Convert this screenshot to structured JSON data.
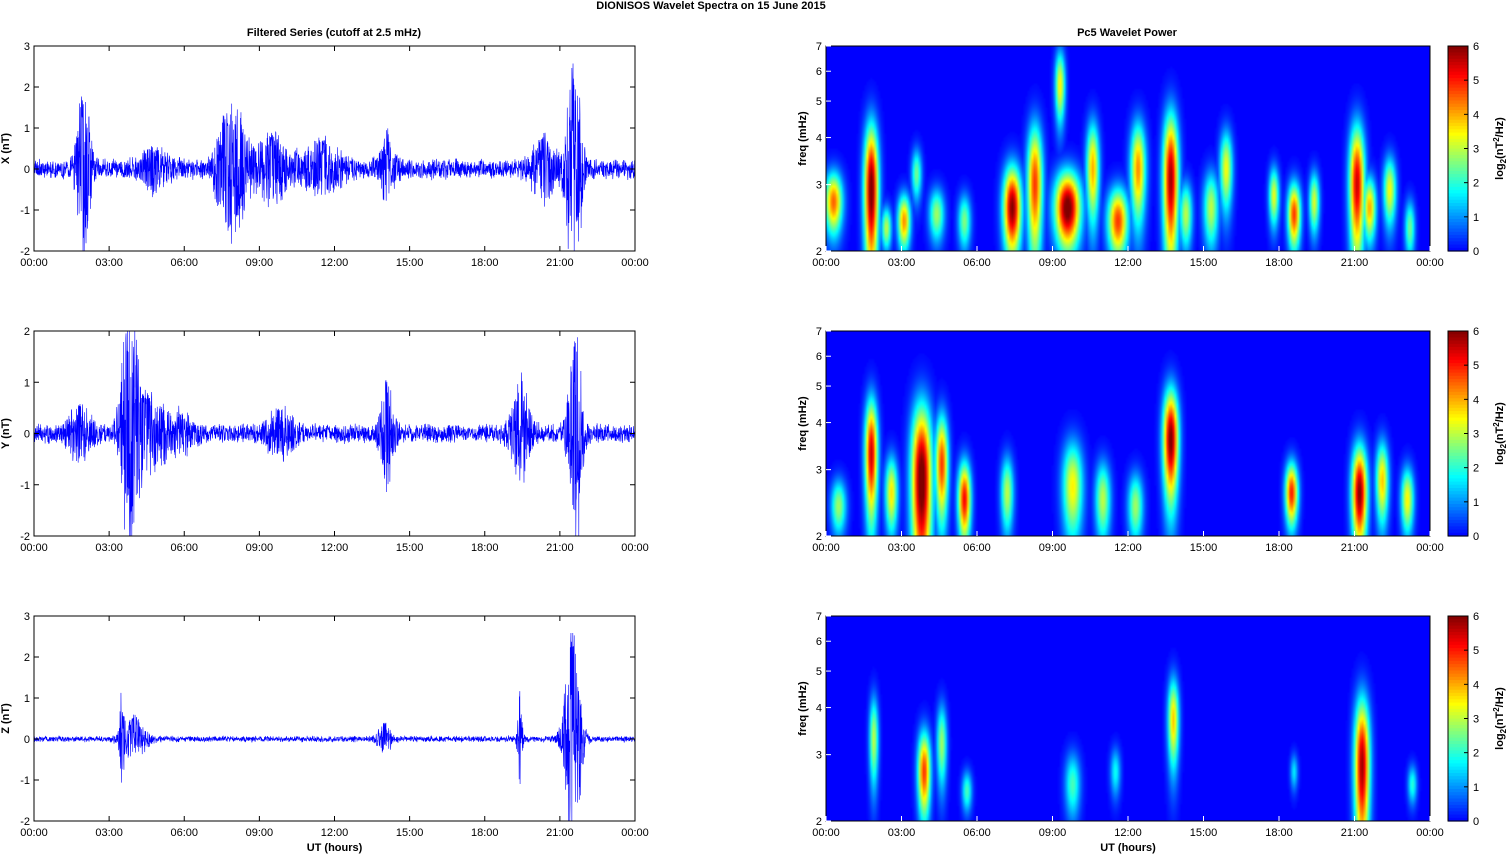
{
  "figure_title": "DIONISOS Wavelet Spectra on 15 June      2015",
  "left_column_title": "Filtered Series (cutoff at 2.5 mHz)",
  "right_column_title": "Pc5 Wavelet Power",
  "x_tick_labels": [
    "00:00",
    "03:00",
    "06:00",
    "09:00",
    "12:00",
    "15:00",
    "18:00",
    "21:00",
    "00:00"
  ],
  "x_axis_label": "UT (hours)",
  "colors": {
    "trace": "#0000ff",
    "axis": "#000000",
    "background_spectrum": "#00008f"
  },
  "chart_data": [
    {
      "type": "line",
      "component": "X",
      "ylabel": "X (nT)",
      "ylim": [
        -2,
        3
      ],
      "y_ticks": [
        "3",
        "2",
        "1",
        "0",
        "-1",
        "-2"
      ],
      "xlim_hours": [
        0,
        24
      ],
      "base_amplitude_nT": 0.2,
      "activity_bursts": [
        {
          "t": 1.9,
          "width": 0.25,
          "amp": 1.6
        },
        {
          "t": 2.1,
          "width": 0.2,
          "amp": -1.5
        },
        {
          "t": 4.8,
          "width": 0.6,
          "amp": 0.5
        },
        {
          "t": 7.7,
          "width": 0.5,
          "amp": 1.3
        },
        {
          "t": 8.1,
          "width": 0.4,
          "amp": -1.2
        },
        {
          "t": 9.5,
          "width": 0.8,
          "amp": 0.9
        },
        {
          "t": 11.5,
          "width": 0.8,
          "amp": 0.7
        },
        {
          "t": 14.1,
          "width": 0.3,
          "amp": 1.0
        },
        {
          "t": 20.3,
          "width": 0.5,
          "amp": 0.8
        },
        {
          "t": 21.5,
          "width": 0.3,
          "amp": 2.6
        },
        {
          "t": 21.7,
          "width": 0.2,
          "amp": -1.3
        }
      ]
    },
    {
      "type": "line",
      "component": "Y",
      "ylabel": "Y (nT)",
      "ylim": [
        -2,
        2
      ],
      "y_ticks": [
        "2",
        "1",
        "0",
        "-1",
        "-2"
      ],
      "xlim_hours": [
        0,
        24
      ],
      "base_amplitude_nT": 0.15,
      "activity_bursts": [
        {
          "t": 1.8,
          "width": 0.5,
          "amp": 0.6
        },
        {
          "t": 3.7,
          "width": 0.3,
          "amp": 1.85
        },
        {
          "t": 3.9,
          "width": 0.3,
          "amp": -1.6
        },
        {
          "t": 4.5,
          "width": 0.8,
          "amp": 0.8
        },
        {
          "t": 5.8,
          "width": 0.6,
          "amp": 0.4
        },
        {
          "t": 9.8,
          "width": 0.6,
          "amp": 0.5
        },
        {
          "t": 14.1,
          "width": 0.3,
          "amp": 1.1
        },
        {
          "t": 19.4,
          "width": 0.4,
          "amp": 1.2
        },
        {
          "t": 21.6,
          "width": 0.3,
          "amp": 1.8
        },
        {
          "t": 21.7,
          "width": 0.2,
          "amp": -0.9
        }
      ]
    },
    {
      "type": "line",
      "component": "Z",
      "ylabel": "Z (nT)",
      "ylim": [
        -2,
        3
      ],
      "y_ticks": [
        "3",
        "2",
        "1",
        "0",
        "-1",
        "-2"
      ],
      "xlim_hours": [
        0,
        24
      ],
      "base_amplitude_nT": 0.06,
      "activity_bursts": [
        {
          "t": 3.5,
          "width": 0.1,
          "amp": -1.3
        },
        {
          "t": 4.0,
          "width": 0.5,
          "amp": 0.6
        },
        {
          "t": 14.0,
          "width": 0.3,
          "amp": 0.4
        },
        {
          "t": 19.4,
          "width": 0.1,
          "amp": 1.2
        },
        {
          "t": 21.5,
          "width": 0.35,
          "amp": 2.6
        },
        {
          "t": 21.6,
          "width": 0.3,
          "amp": -0.6
        }
      ]
    },
    {
      "type": "heatmap",
      "component": "X",
      "ylabel": "freq (mHz)",
      "y_scale": "log",
      "ylim_mHz": [
        2,
        7
      ],
      "y_ticks": [
        "7",
        "6",
        "5",
        "4",
        "3",
        "2"
      ],
      "xlim_hours": [
        0,
        24
      ],
      "colorbar_label": "log2(nT^2/Hz)",
      "colorbar_ticks": [
        "6",
        "5",
        "4",
        "3",
        "2",
        "1",
        "0"
      ],
      "clim": [
        0,
        6
      ],
      "blobs": [
        {
          "t": 0.3,
          "f": 2.7,
          "wt": 0.35,
          "wf": 0.5,
          "p": 4.5
        },
        {
          "t": 1.8,
          "f": 2.9,
          "wt": 0.28,
          "wf": 1.3,
          "p": 6.2
        },
        {
          "t": 2.4,
          "f": 2.3,
          "wt": 0.2,
          "wf": 0.3,
          "p": 3.0
        },
        {
          "t": 3.1,
          "f": 2.4,
          "wt": 0.25,
          "wf": 0.4,
          "p": 4.2
        },
        {
          "t": 3.6,
          "f": 3.2,
          "wt": 0.2,
          "wf": 0.5,
          "p": 2.5
        },
        {
          "t": 4.4,
          "f": 2.5,
          "wt": 0.3,
          "wf": 0.4,
          "p": 2.8
        },
        {
          "t": 5.5,
          "f": 2.4,
          "wt": 0.25,
          "wf": 0.4,
          "p": 2.6
        },
        {
          "t": 7.4,
          "f": 2.6,
          "wt": 0.35,
          "wf": 0.7,
          "p": 6.0
        },
        {
          "t": 8.3,
          "f": 3.0,
          "wt": 0.3,
          "wf": 1.2,
          "p": 4.8
        },
        {
          "t": 9.6,
          "f": 2.6,
          "wt": 0.5,
          "wf": 0.6,
          "p": 6.3
        },
        {
          "t": 9.3,
          "f": 5.5,
          "wt": 0.2,
          "wf": 1.2,
          "p": 3.5
        },
        {
          "t": 10.6,
          "f": 3.3,
          "wt": 0.25,
          "wf": 1.0,
          "p": 4.0
        },
        {
          "t": 11.6,
          "f": 2.4,
          "wt": 0.4,
          "wf": 0.5,
          "p": 4.8
        },
        {
          "t": 12.4,
          "f": 3.3,
          "wt": 0.3,
          "wf": 1.0,
          "p": 4.2
        },
        {
          "t": 13.7,
          "f": 3.1,
          "wt": 0.3,
          "wf": 1.4,
          "p": 5.8
        },
        {
          "t": 14.3,
          "f": 2.5,
          "wt": 0.25,
          "wf": 0.5,
          "p": 3.0
        },
        {
          "t": 15.3,
          "f": 2.6,
          "wt": 0.3,
          "wf": 0.6,
          "p": 3.0
        },
        {
          "t": 15.9,
          "f": 3.3,
          "wt": 0.25,
          "wf": 0.8,
          "p": 3.4
        },
        {
          "t": 17.8,
          "f": 2.8,
          "wt": 0.2,
          "wf": 0.5,
          "p": 3.3
        },
        {
          "t": 18.6,
          "f": 2.5,
          "wt": 0.25,
          "wf": 0.5,
          "p": 4.8
        },
        {
          "t": 19.4,
          "f": 2.7,
          "wt": 0.2,
          "wf": 0.5,
          "p": 3.2
        },
        {
          "t": 21.1,
          "f": 3.0,
          "wt": 0.3,
          "wf": 1.2,
          "p": 5.5
        },
        {
          "t": 21.6,
          "f": 2.6,
          "wt": 0.25,
          "wf": 0.5,
          "p": 4.0
        },
        {
          "t": 22.4,
          "f": 2.9,
          "wt": 0.25,
          "wf": 0.6,
          "p": 3.4
        },
        {
          "t": 23.2,
          "f": 2.3,
          "wt": 0.2,
          "wf": 0.4,
          "p": 2.5
        }
      ]
    },
    {
      "type": "heatmap",
      "component": "Y",
      "ylabel": "freq (mHz)",
      "y_scale": "log",
      "ylim_mHz": [
        2,
        7
      ],
      "y_ticks": [
        "7",
        "6",
        "5",
        "4",
        "3",
        "2"
      ],
      "xlim_hours": [
        0,
        24
      ],
      "colorbar_label": "log2(nT^2/Hz)",
      "colorbar_ticks": [
        "6",
        "5",
        "4",
        "3",
        "2",
        "1",
        "0"
      ],
      "clim": [
        0,
        6
      ],
      "blobs": [
        {
          "t": 0.5,
          "f": 2.4,
          "wt": 0.3,
          "wf": 0.4,
          "p": 2.8
        },
        {
          "t": 1.8,
          "f": 3.3,
          "wt": 0.25,
          "wf": 1.2,
          "p": 5.5
        },
        {
          "t": 2.6,
          "f": 2.6,
          "wt": 0.25,
          "wf": 0.6,
          "p": 3.6
        },
        {
          "t": 3.8,
          "f": 2.8,
          "wt": 0.4,
          "wf": 1.5,
          "p": 6.4
        },
        {
          "t": 4.6,
          "f": 3.1,
          "wt": 0.25,
          "wf": 1.0,
          "p": 4.8
        },
        {
          "t": 5.5,
          "f": 2.5,
          "wt": 0.25,
          "wf": 0.6,
          "p": 5.2
        },
        {
          "t": 7.2,
          "f": 2.6,
          "wt": 0.25,
          "wf": 0.6,
          "p": 3.0
        },
        {
          "t": 9.8,
          "f": 2.7,
          "wt": 0.4,
          "wf": 0.8,
          "p": 3.5
        },
        {
          "t": 11.0,
          "f": 2.5,
          "wt": 0.3,
          "wf": 0.6,
          "p": 3.0
        },
        {
          "t": 12.3,
          "f": 2.4,
          "wt": 0.3,
          "wf": 0.5,
          "p": 2.8
        },
        {
          "t": 13.7,
          "f": 3.6,
          "wt": 0.3,
          "wf": 1.2,
          "p": 6.1
        },
        {
          "t": 18.5,
          "f": 2.6,
          "wt": 0.25,
          "wf": 0.5,
          "p": 5.0
        },
        {
          "t": 21.2,
          "f": 2.6,
          "wt": 0.3,
          "wf": 0.8,
          "p": 6.0
        },
        {
          "t": 22.1,
          "f": 2.8,
          "wt": 0.25,
          "wf": 0.7,
          "p": 3.8
        },
        {
          "t": 23.1,
          "f": 2.5,
          "wt": 0.25,
          "wf": 0.5,
          "p": 3.5
        }
      ]
    },
    {
      "type": "heatmap",
      "component": "Z",
      "ylabel": "freq (mHz)",
      "y_scale": "log",
      "ylim_mHz": [
        2,
        7
      ],
      "y_ticks": [
        "7",
        "6",
        "5",
        "4",
        "3",
        "2"
      ],
      "xlim_hours": [
        0,
        24
      ],
      "colorbar_label": "log2(nT^2/Hz)",
      "colorbar_ticks": [
        "6",
        "5",
        "4",
        "3",
        "2",
        "1",
        "0"
      ],
      "clim": [
        0,
        6
      ],
      "blobs": [
        {
          "t": 1.9,
          "f": 3.3,
          "wt": 0.18,
          "wf": 0.9,
          "p": 3.0
        },
        {
          "t": 3.9,
          "f": 2.7,
          "wt": 0.25,
          "wf": 0.7,
          "p": 4.8
        },
        {
          "t": 4.6,
          "f": 3.2,
          "wt": 0.2,
          "wf": 0.8,
          "p": 2.8
        },
        {
          "t": 5.6,
          "f": 2.4,
          "wt": 0.2,
          "wf": 0.3,
          "p": 2.2
        },
        {
          "t": 9.8,
          "f": 2.5,
          "wt": 0.3,
          "wf": 0.5,
          "p": 2.2
        },
        {
          "t": 11.5,
          "f": 2.7,
          "wt": 0.2,
          "wf": 0.4,
          "p": 1.8
        },
        {
          "t": 13.8,
          "f": 3.7,
          "wt": 0.22,
          "wf": 1.0,
          "p": 3.8
        },
        {
          "t": 18.6,
          "f": 2.7,
          "wt": 0.15,
          "wf": 0.3,
          "p": 1.6
        },
        {
          "t": 21.3,
          "f": 2.8,
          "wt": 0.3,
          "wf": 1.3,
          "p": 5.8
        },
        {
          "t": 23.3,
          "f": 2.5,
          "wt": 0.18,
          "wf": 0.3,
          "p": 2.0
        }
      ]
    }
  ]
}
